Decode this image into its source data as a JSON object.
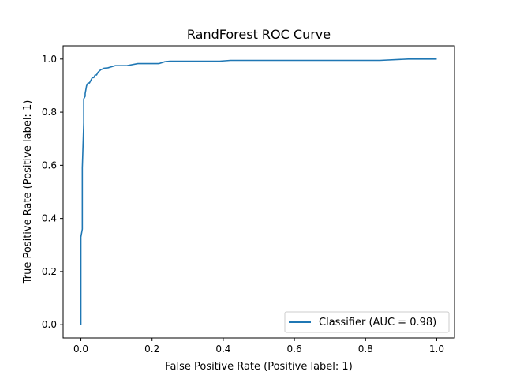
{
  "chart_data": {
    "type": "line",
    "title": "RandForest ROC Curve",
    "xlabel": "False Positive Rate (Positive label: 1)",
    "ylabel": "True Positive Rate (Positive label: 1)",
    "xlim": [
      -0.05,
      1.05
    ],
    "ylim": [
      -0.05,
      1.05
    ],
    "xticks": [
      0.0,
      0.2,
      0.4,
      0.6,
      0.8,
      1.0
    ],
    "yticks": [
      0.0,
      0.2,
      0.4,
      0.6,
      0.8,
      1.0
    ],
    "grid": false,
    "legend_position": "bottom-right",
    "series": [
      {
        "name": "Classifier (AUC = 0.98)",
        "color": "#1f77b4",
        "x": [
          0.0,
          0.0,
          0.0,
          0.004,
          0.004,
          0.004,
          0.008,
          0.008,
          0.008,
          0.012,
          0.012,
          0.016,
          0.02,
          0.024,
          0.028,
          0.032,
          0.036,
          0.04,
          0.044,
          0.048,
          0.052,
          0.056,
          0.06,
          0.064,
          0.068,
          0.076,
          0.084,
          0.096,
          0.128,
          0.16,
          0.22,
          0.236,
          0.25,
          0.39,
          0.42,
          0.84,
          0.92,
          1.0
        ],
        "y": [
          0.0,
          0.31,
          0.33,
          0.36,
          0.55,
          0.59,
          0.76,
          0.83,
          0.85,
          0.86,
          0.87,
          0.9,
          0.91,
          0.91,
          0.92,
          0.93,
          0.93,
          0.94,
          0.94,
          0.95,
          0.955,
          0.96,
          0.962,
          0.965,
          0.966,
          0.967,
          0.97,
          0.975,
          0.975,
          0.983,
          0.983,
          0.99,
          0.992,
          0.992,
          0.995,
          0.995,
          1.0,
          1.0
        ]
      }
    ]
  }
}
